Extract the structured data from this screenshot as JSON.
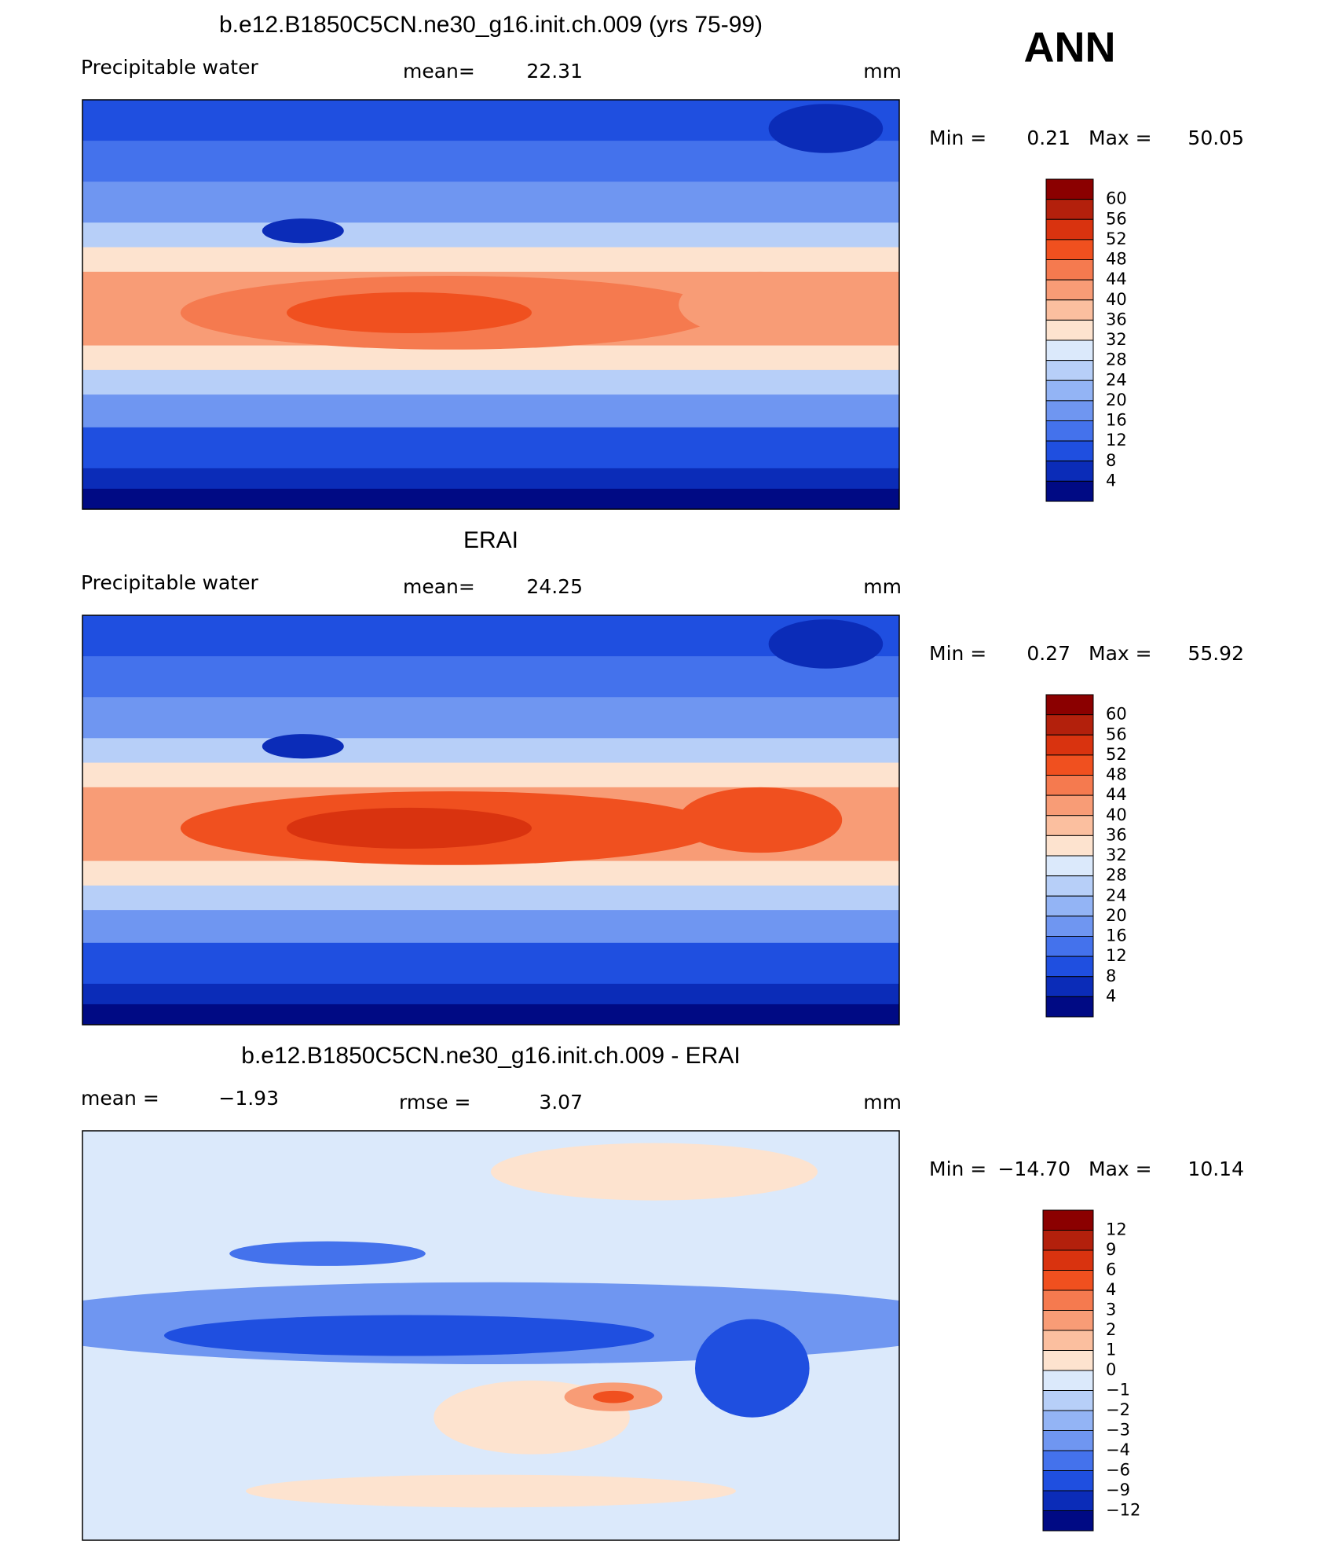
{
  "figure_label": "ANN",
  "panels": [
    {
      "title": "b.e12.B1850C5CN.ne30_g16.init.ch.009 (yrs 75-99)",
      "left_label": "Precipitable  water",
      "center_label": "mean=",
      "center_value": "22.31",
      "units": "mm",
      "min_label": "Min  =",
      "min_value": "0.21",
      "max_label": "Max  =",
      "max_value": "50.05",
      "colorbar": {
        "levels": [
          "60",
          "56",
          "52",
          "48",
          "44",
          "40",
          "36",
          "32",
          "28",
          "24",
          "20",
          "16",
          "12",
          "8",
          "4"
        ],
        "colors": [
          "#8b0000",
          "#b3200c",
          "#d9330f",
          "#f0501f",
          "#f57a4f",
          "#f89c76",
          "#fbbf9f",
          "#fde3cf",
          "#dbe9fb",
          "#b7cff8",
          "#93b4f5",
          "#6f96f1",
          "#4472ec",
          "#1f4fe0",
          "#0b2cb8",
          "#000a84"
        ]
      }
    },
    {
      "title": "ERAI",
      "left_label": "Precipitable  water",
      "center_label": "mean=",
      "center_value": "24.25",
      "units": "mm",
      "min_label": "Min  =",
      "min_value": "0.27",
      "max_label": "Max  =",
      "max_value": "55.92",
      "colorbar": {
        "levels": [
          "60",
          "56",
          "52",
          "48",
          "44",
          "40",
          "36",
          "32",
          "28",
          "24",
          "20",
          "16",
          "12",
          "8",
          "4"
        ],
        "colors": [
          "#8b0000",
          "#b3200c",
          "#d9330f",
          "#f0501f",
          "#f57a4f",
          "#f89c76",
          "#fbbf9f",
          "#fde3cf",
          "#dbe9fb",
          "#b7cff8",
          "#93b4f5",
          "#6f96f1",
          "#4472ec",
          "#1f4fe0",
          "#0b2cb8",
          "#000a84"
        ]
      }
    },
    {
      "title": "b.e12.B1850C5CN.ne30_g16.init.ch.009 - ERAI",
      "left_label": "mean  =",
      "left_value": "−1.93",
      "center_label": "rmse  =",
      "center_value": "3.07",
      "units": "mm",
      "min_label": "Min  =",
      "min_value": "−14.70",
      "max_label": "Max  =",
      "max_value": "10.14",
      "colorbar": {
        "levels": [
          "12",
          "9",
          "6",
          "4",
          "3",
          "2",
          "1",
          "0",
          "−1",
          "−2",
          "−3",
          "−4",
          "−6",
          "−9",
          "−12"
        ],
        "colors": [
          "#8b0000",
          "#b3200c",
          "#d9330f",
          "#f0501f",
          "#f57a4f",
          "#f89c76",
          "#fbbf9f",
          "#fde3cf",
          "#dbe9fb",
          "#b7cff8",
          "#93b4f5",
          "#6f96f1",
          "#4472ec",
          "#1f4fe0",
          "#0b2cb8",
          "#000a84"
        ]
      }
    }
  ]
}
